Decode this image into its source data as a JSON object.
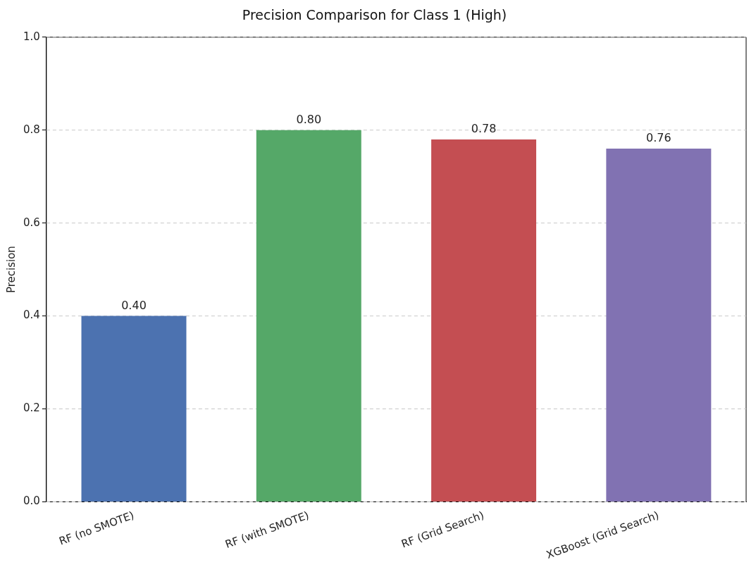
{
  "chart_data": {
    "type": "bar",
    "title": "Precision Comparison for Class 1 (High)",
    "ylabel": "Precision",
    "categories": [
      "RF (no SMOTE)",
      "RF (with SMOTE)",
      "RF (Grid Search)",
      "XGBoost (Grid Search)"
    ],
    "values": [
      0.4,
      0.8,
      0.78,
      0.76
    ],
    "colors": [
      "#4c72b0",
      "#55a868",
      "#c44e52",
      "#8172b2"
    ],
    "ylim": [
      0,
      1
    ],
    "yticks": [
      {
        "value": 0,
        "label": "0.0"
      },
      {
        "value": 0.2,
        "label": "0.2"
      },
      {
        "value": 0.4,
        "label": "0.4"
      },
      {
        "value": 0.6,
        "label": "0.6"
      },
      {
        "value": 0.8,
        "label": "0.8"
      },
      {
        "value": 1,
        "label": "1.0"
      }
    ],
    "grid": "y",
    "line_style": "dashed",
    "legend": false,
    "value_labels": [
      "0.40",
      "0.80",
      "0.78",
      "0.76"
    ]
  }
}
